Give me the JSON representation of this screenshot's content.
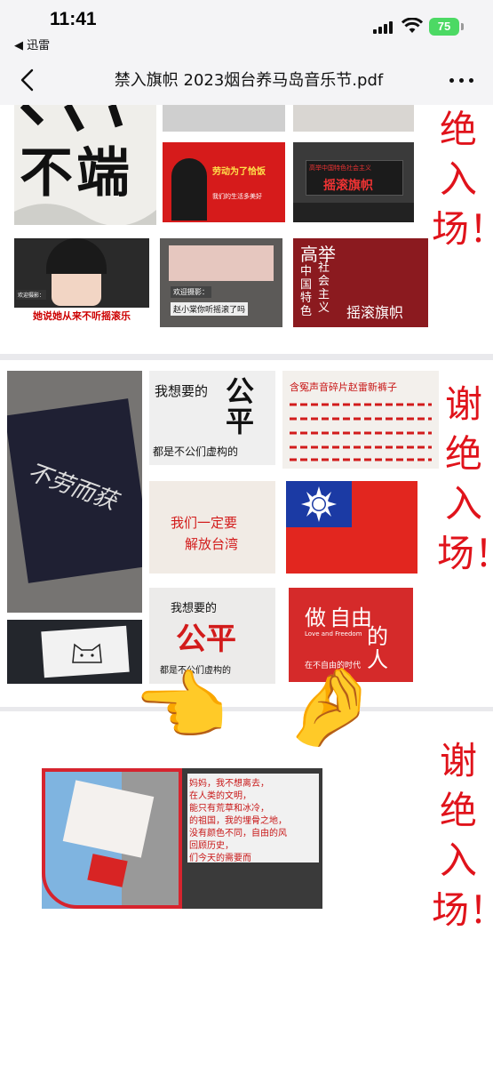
{
  "status_bar": {
    "time": "11:41",
    "back_app": "◀ 迅雷",
    "battery": "75"
  },
  "navbar": {
    "title": "禁入旗帜  2023烟台养马岛音乐节.pdf"
  },
  "page1": {
    "side_text": "绝入场！",
    "images": {
      "banner1_text": "不端",
      "banner2_top": "劳动为了恰饭",
      "banner2_sub": "我们的生活多美好",
      "banner3_text": "摇滚旗帜",
      "banner3_top": "高举中国特色社会主义",
      "singer_caption": "她说她从来不听摇滚乐",
      "singer_tag1": "欢迎摄影：",
      "singer_tag2": "欢迎摄影：",
      "sign2_text1": "欢迎摄影：",
      "sign2_text2": "赵小棠你听摇滚了吗",
      "red_block_top": "高举",
      "red_block_left": "中国特色",
      "red_block_mid": "社会主义",
      "red_block_big": "摇滚旗帜"
    }
  },
  "page2": {
    "side_text": "谢绝入场！",
    "images": {
      "flag1_text": "不劳而获",
      "flag2_line1": "我想要的",
      "flag2_big": "公平",
      "flag2_line2": "都是不公们虚构的",
      "flag3_text": "含冤声音碎片赵雷新裤子",
      "flag4_line1": "我们一定要",
      "flag4_line2": "解放台湾",
      "flag6_line1": "我想要的",
      "flag6_big": "公平",
      "flag6_line2": "都是不公们虚构的",
      "flag7_text1": "做",
      "flag7_text2": "自由",
      "flag7_text3": "的人",
      "flag7_small": "在不自由的时代",
      "flag7_en": "Love and Freedom"
    }
  },
  "page3": {
    "side_text": "谢绝入场！",
    "emoji_left": "👈",
    "emoji_right": "🤌",
    "poster_lines": [
      "妈妈，我不想离去，",
      "在人类的文明，",
      "能只有荒草和冰冷，",
      "的祖国，我的埋骨之地，",
      "没有颜色不同，自由的风",
      "回顾历史，",
      "们今天的需要而"
    ]
  }
}
